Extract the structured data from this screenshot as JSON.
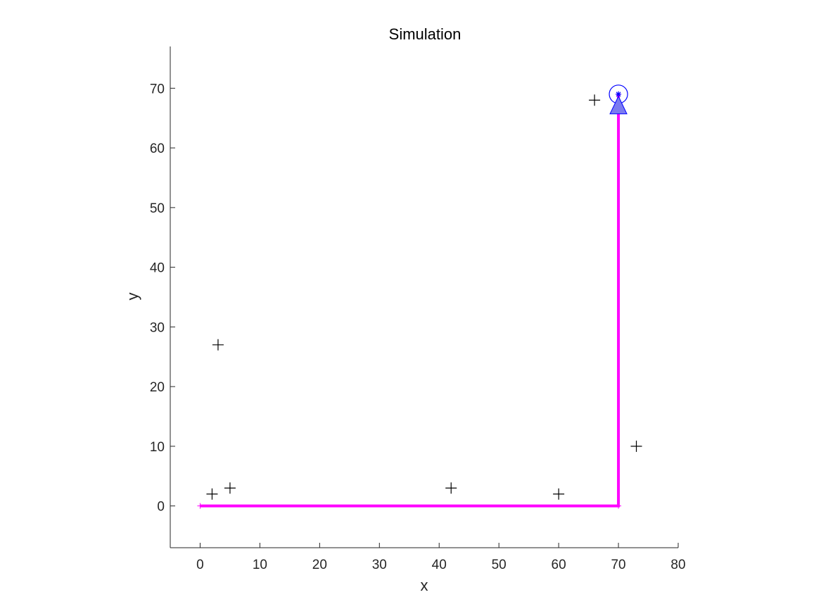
{
  "chart_data": {
    "type": "scatter",
    "title": "Simulation",
    "xlabel": "x",
    "ylabel": "y",
    "xlim": [
      -5,
      80
    ],
    "ylim": [
      -7,
      77
    ],
    "xticks": [
      "0",
      "10",
      "20",
      "30",
      "40",
      "50",
      "60",
      "70",
      "80"
    ],
    "yticks": [
      "0",
      "10",
      "20",
      "30",
      "40",
      "50",
      "60",
      "70"
    ],
    "grid": false,
    "series": [
      {
        "type": "scatter",
        "marker": "plus",
        "color": "#000000",
        "points": [
          {
            "x": 2,
            "y": 2
          },
          {
            "x": 5,
            "y": 3
          },
          {
            "x": 3,
            "y": 27
          },
          {
            "x": 42,
            "y": 3
          },
          {
            "x": 60,
            "y": 2
          },
          {
            "x": 73,
            "y": 10
          },
          {
            "x": 66,
            "y": 68
          }
        ]
      },
      {
        "type": "line",
        "color": "#ff00ff",
        "points": [
          {
            "x": 0,
            "y": 0
          },
          {
            "x": 70,
            "y": 0
          },
          {
            "x": 70,
            "y": 69
          }
        ]
      },
      {
        "type": "marker",
        "marker": "circle",
        "color": "#0000ff",
        "points": [
          {
            "x": 70,
            "y": 69
          }
        ]
      },
      {
        "type": "marker",
        "marker": "triangle",
        "color": "#0000ff",
        "fill": "#7b7bf0",
        "points": [
          {
            "x": 70,
            "y": 67
          }
        ]
      }
    ]
  }
}
